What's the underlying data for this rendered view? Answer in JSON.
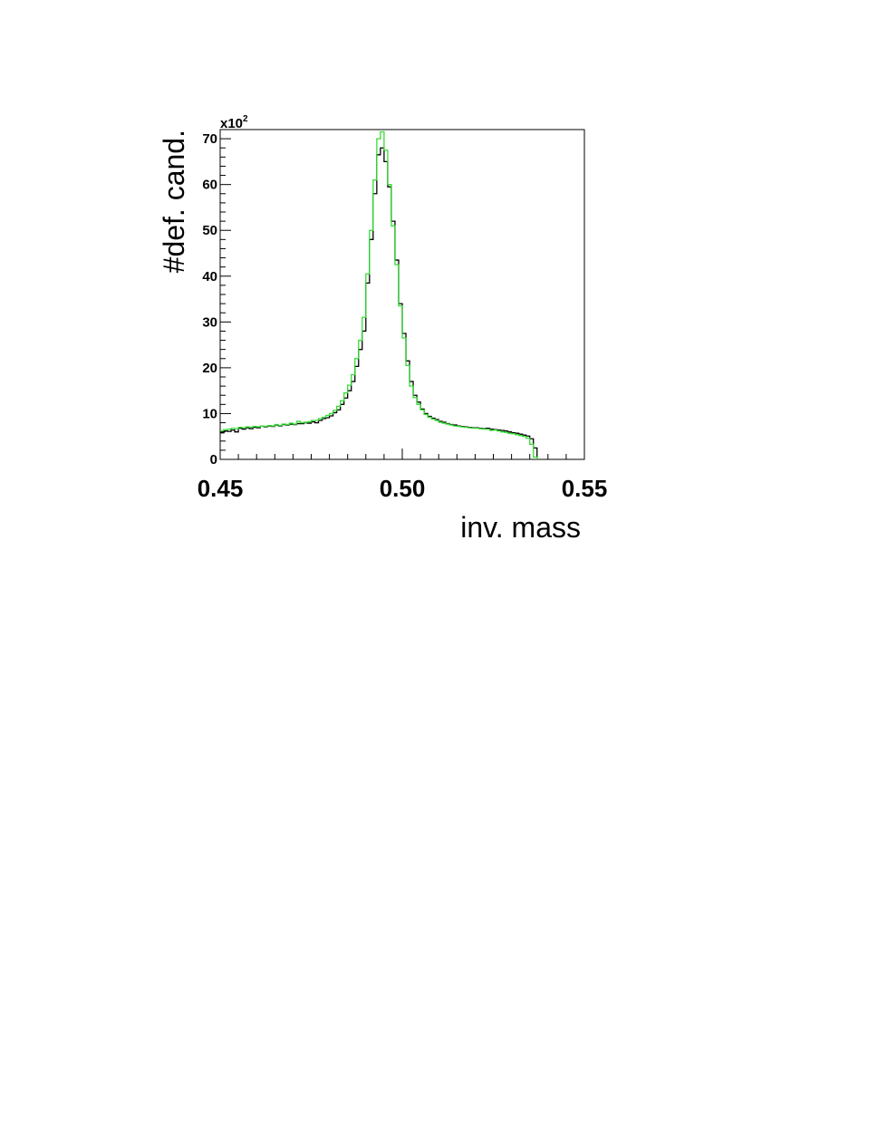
{
  "chart_data": {
    "type": "histogram",
    "title": "",
    "xlabel": "inv. mass",
    "ylabel": "#def. cand.",
    "y_multiplier": {
      "base": "x10",
      "exponent": "2"
    },
    "xlim": [
      0.45,
      0.55
    ],
    "ylim": [
      0,
      72
    ],
    "grid": false,
    "x_ticks": [
      {
        "value": 0.45,
        "label": "0.45"
      },
      {
        "value": 0.5,
        "label": "0.50"
      },
      {
        "value": 0.55,
        "label": "0.55"
      }
    ],
    "y_ticks": [
      {
        "value": 0,
        "label": "0"
      },
      {
        "value": 10,
        "label": "10"
      },
      {
        "value": 20,
        "label": "20"
      },
      {
        "value": 30,
        "label": "30"
      },
      {
        "value": 40,
        "label": "40"
      },
      {
        "value": 50,
        "label": "50"
      },
      {
        "value": 60,
        "label": "60"
      },
      {
        "value": 70,
        "label": "70"
      }
    ],
    "bin_width": 0.001,
    "bins_start": 0.45,
    "series": [
      {
        "color": "#000000",
        "values": [
          5.8,
          6.2,
          6.1,
          6.4,
          6.0,
          6.8,
          6.6,
          6.9,
          6.7,
          7.0,
          6.9,
          7.3,
          7.1,
          7.3,
          7.2,
          7.5,
          7.3,
          7.6,
          7.5,
          7.7,
          7.6,
          7.8,
          7.8,
          8.0,
          7.9,
          8.2,
          8.0,
          8.5,
          8.9,
          9.1,
          9.5,
          10.2,
          10.8,
          12.0,
          13.4,
          15.0,
          17.0,
          20.3,
          24.0,
          28.0,
          38.5,
          48.0,
          58.0,
          66.5,
          68.0,
          65.0,
          59.5,
          52.0,
          43.5,
          34.0,
          27.5,
          21.5,
          17.0,
          14.0,
          12.5,
          11.0,
          10.0,
          9.4,
          9.0,
          8.7,
          8.3,
          8.1,
          7.8,
          7.6,
          7.5,
          7.3,
          7.2,
          7.1,
          7.0,
          6.9,
          6.9,
          6.8,
          6.7,
          6.8,
          6.6,
          6.5,
          6.4,
          6.3,
          6.2,
          6.0,
          5.8,
          5.7,
          5.5,
          5.3,
          5.1,
          4.5,
          2.5
        ]
      },
      {
        "color": "#33dd33",
        "values": [
          6.3,
          6.5,
          6.6,
          6.8,
          6.7,
          7.0,
          6.9,
          7.1,
          7.0,
          7.2,
          7.1,
          7.3,
          7.2,
          7.4,
          7.3,
          7.6,
          7.4,
          7.7,
          7.6,
          7.9,
          7.7,
          8.3,
          8.0,
          8.1,
          8.2,
          8.5,
          8.5,
          8.9,
          9.2,
          9.6,
          10.0,
          10.7,
          11.6,
          12.8,
          14.5,
          16.2,
          18.5,
          22.0,
          26.0,
          31.0,
          40.5,
          50.0,
          61.0,
          70.0,
          71.5,
          67.5,
          60.0,
          51.0,
          42.5,
          33.5,
          26.5,
          20.5,
          16.0,
          13.5,
          12.0,
          10.8,
          9.8,
          9.2,
          8.8,
          8.5,
          8.1,
          7.9,
          7.7,
          7.5,
          7.3,
          7.2,
          7.1,
          7.0,
          6.9,
          6.8,
          6.8,
          6.7,
          6.6,
          6.6,
          6.3,
          6.4,
          6.2,
          6.0,
          5.9,
          5.7,
          5.6,
          5.4,
          5.2,
          5.0,
          4.6,
          3.3,
          0.5
        ]
      }
    ]
  }
}
